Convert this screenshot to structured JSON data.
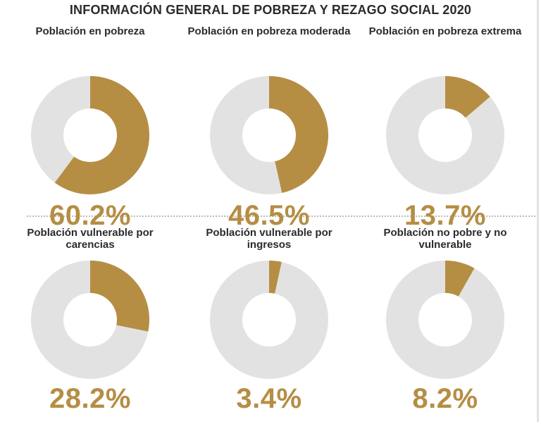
{
  "chart_data": {
    "type": "pie",
    "title": "INFORMACIÓN GENERAL DE POBREZA Y REZAGO SOCIAL 2020",
    "colors": {
      "highlight": "#b58e44",
      "remainder": "#e2e2e2",
      "center": "#ffffff"
    },
    "charts": [
      {
        "label": "Población en pobreza",
        "value_text": "60.2%",
        "value": 60.2
      },
      {
        "label": "Población en pobreza moderada",
        "value_text": "46.5%",
        "value": 46.5
      },
      {
        "label": "Población en pobreza extrema",
        "value_text": "13.7%",
        "value": 13.7
      },
      {
        "label": "Población vulnerable por carencias",
        "value_text": "28.2%",
        "value": 28.2
      },
      {
        "label": "Población vulnerable por ingresos",
        "value_text": "3.4%",
        "value": 3.4
      },
      {
        "label": "Población no pobre y no vulnerable",
        "value_text": "8.2%",
        "value": 8.2
      }
    ]
  }
}
